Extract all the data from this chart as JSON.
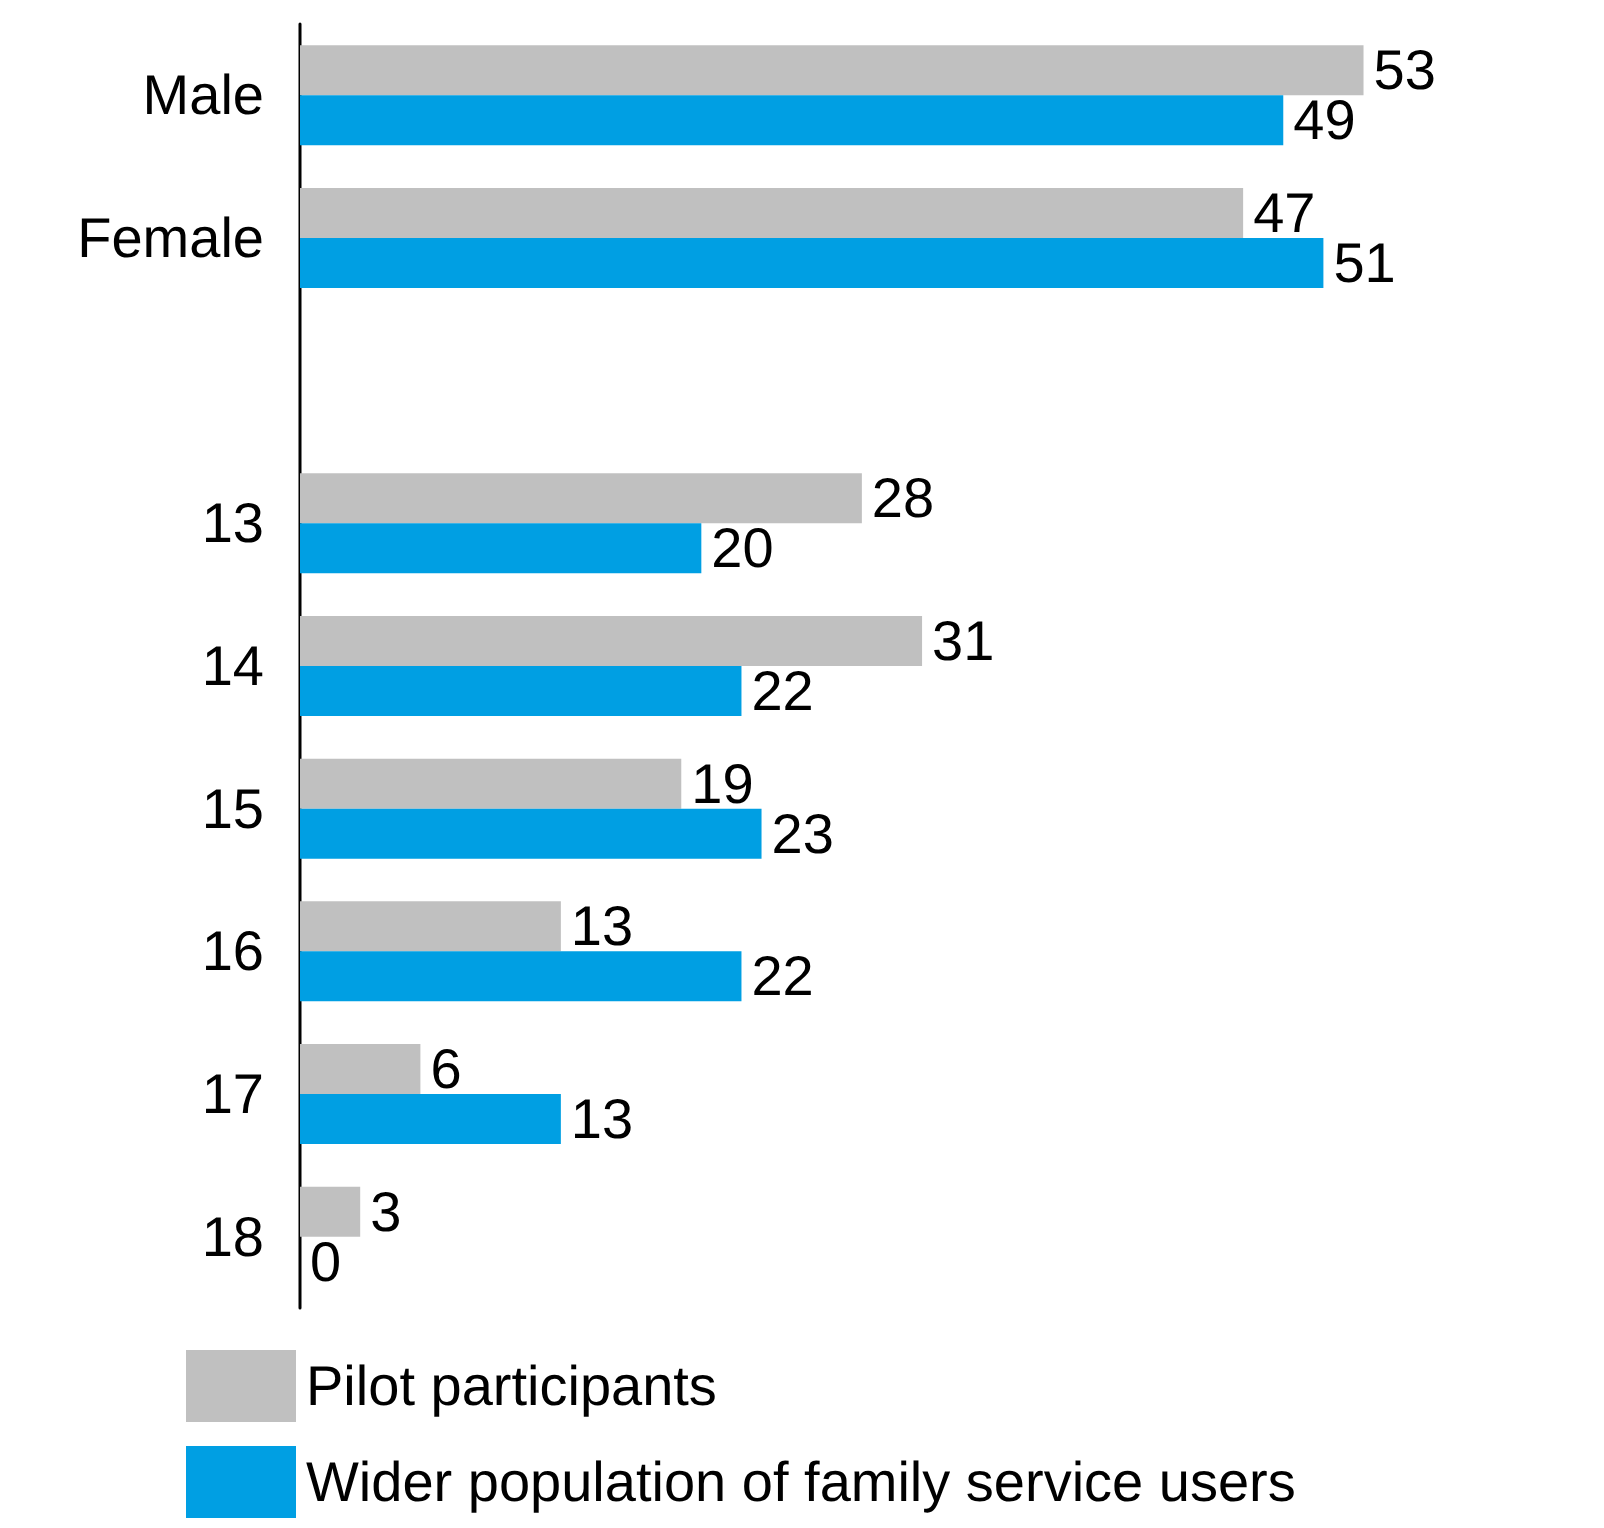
{
  "chart_data": {
    "type": "bar",
    "orientation": "horizontal",
    "categories": [
      "Male",
      "Female",
      null,
      "13",
      "14",
      "15",
      "16",
      "17",
      "18"
    ],
    "series": [
      {
        "name": "Pilot participants",
        "color": "#c0c0c0",
        "values": [
          53,
          47,
          null,
          28,
          31,
          19,
          13,
          6,
          3
        ]
      },
      {
        "name": "Wider population of family service users",
        "color": "#009fe3",
        "values": [
          49,
          51,
          null,
          20,
          22,
          23,
          22,
          13,
          0
        ]
      }
    ],
    "data_labels": true,
    "legend": "bottom left"
  }
}
